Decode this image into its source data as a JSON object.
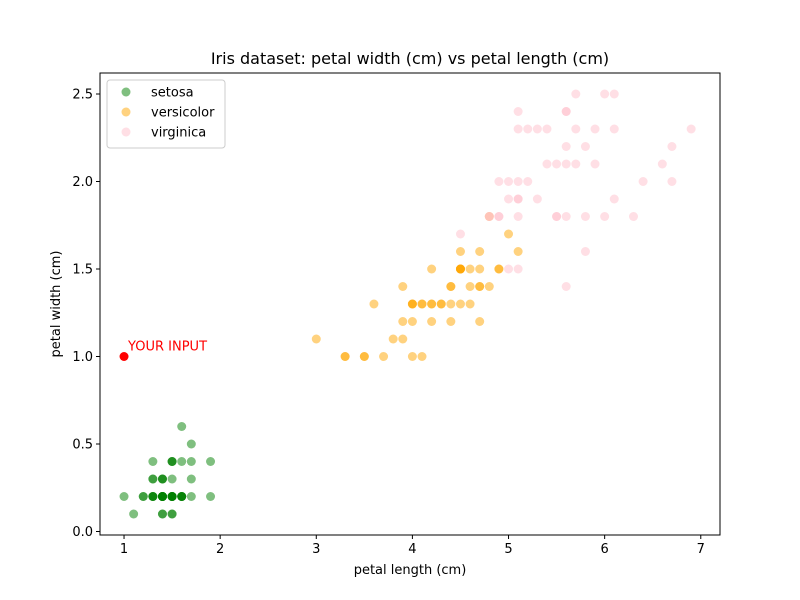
{
  "chart_data": {
    "type": "scatter",
    "title": "Iris dataset: petal width (cm) vs petal length (cm)",
    "xlabel": "petal length (cm)",
    "ylabel": "petal width (cm)",
    "xlim": [
      0.75,
      7.2
    ],
    "ylim": [
      -0.02,
      2.62
    ],
    "xticks": [
      1,
      2,
      3,
      4,
      5,
      6,
      7
    ],
    "xtick_labels": [
      "1",
      "2",
      "3",
      "4",
      "5",
      "6",
      "7"
    ],
    "yticks": [
      0.0,
      0.5,
      1.0,
      1.5,
      2.0,
      2.5
    ],
    "ytick_labels": [
      "0.0",
      "0.5",
      "1.0",
      "1.5",
      "2.0",
      "2.5"
    ],
    "grid": false,
    "legend_position": "top-left",
    "series": [
      {
        "name": "setosa",
        "color": "#008000",
        "opacity": 0.5,
        "points": [
          [
            1.4,
            0.2
          ],
          [
            1.4,
            0.2
          ],
          [
            1.3,
            0.2
          ],
          [
            1.5,
            0.2
          ],
          [
            1.4,
            0.2
          ],
          [
            1.7,
            0.4
          ],
          [
            1.4,
            0.3
          ],
          [
            1.5,
            0.2
          ],
          [
            1.4,
            0.2
          ],
          [
            1.5,
            0.1
          ],
          [
            1.5,
            0.2
          ],
          [
            1.6,
            0.2
          ],
          [
            1.4,
            0.1
          ],
          [
            1.1,
            0.1
          ],
          [
            1.2,
            0.2
          ],
          [
            1.5,
            0.4
          ],
          [
            1.3,
            0.4
          ],
          [
            1.4,
            0.3
          ],
          [
            1.7,
            0.3
          ],
          [
            1.5,
            0.3
          ],
          [
            1.7,
            0.2
          ],
          [
            1.5,
            0.4
          ],
          [
            1.0,
            0.2
          ],
          [
            1.7,
            0.5
          ],
          [
            1.9,
            0.2
          ],
          [
            1.6,
            0.2
          ],
          [
            1.6,
            0.4
          ],
          [
            1.5,
            0.2
          ],
          [
            1.4,
            0.2
          ],
          [
            1.6,
            0.2
          ],
          [
            1.6,
            0.2
          ],
          [
            1.5,
            0.4
          ],
          [
            1.5,
            0.1
          ],
          [
            1.4,
            0.2
          ],
          [
            1.5,
            0.2
          ],
          [
            1.2,
            0.2
          ],
          [
            1.3,
            0.2
          ],
          [
            1.4,
            0.1
          ],
          [
            1.3,
            0.2
          ],
          [
            1.5,
            0.2
          ],
          [
            1.3,
            0.3
          ],
          [
            1.3,
            0.3
          ],
          [
            1.3,
            0.2
          ],
          [
            1.6,
            0.6
          ],
          [
            1.9,
            0.4
          ],
          [
            1.4,
            0.3
          ],
          [
            1.6,
            0.2
          ],
          [
            1.4,
            0.2
          ],
          [
            1.5,
            0.2
          ],
          [
            1.4,
            0.2
          ]
        ]
      },
      {
        "name": "versicolor",
        "color": "#ffa500",
        "opacity": 0.5,
        "points": [
          [
            4.7,
            1.4
          ],
          [
            4.5,
            1.5
          ],
          [
            4.9,
            1.5
          ],
          [
            4.0,
            1.3
          ],
          [
            4.6,
            1.5
          ],
          [
            4.5,
            1.3
          ],
          [
            4.7,
            1.6
          ],
          [
            3.3,
            1.0
          ],
          [
            4.6,
            1.3
          ],
          [
            3.9,
            1.4
          ],
          [
            3.5,
            1.0
          ],
          [
            4.2,
            1.5
          ],
          [
            4.0,
            1.0
          ],
          [
            4.7,
            1.4
          ],
          [
            3.6,
            1.3
          ],
          [
            4.4,
            1.4
          ],
          [
            4.5,
            1.5
          ],
          [
            4.1,
            1.0
          ],
          [
            4.5,
            1.5
          ],
          [
            3.9,
            1.1
          ],
          [
            4.8,
            1.8
          ],
          [
            4.0,
            1.3
          ],
          [
            4.9,
            1.5
          ],
          [
            4.7,
            1.2
          ],
          [
            4.3,
            1.3
          ],
          [
            4.4,
            1.4
          ],
          [
            4.8,
            1.4
          ],
          [
            5.0,
            1.7
          ],
          [
            4.5,
            1.5
          ],
          [
            3.5,
            1.0
          ],
          [
            3.8,
            1.1
          ],
          [
            3.7,
            1.0
          ],
          [
            3.9,
            1.2
          ],
          [
            5.1,
            1.6
          ],
          [
            4.5,
            1.5
          ],
          [
            4.5,
            1.6
          ],
          [
            4.7,
            1.5
          ],
          [
            4.4,
            1.3
          ],
          [
            4.1,
            1.3
          ],
          [
            4.0,
            1.3
          ],
          [
            4.4,
            1.2
          ],
          [
            4.6,
            1.4
          ],
          [
            4.0,
            1.2
          ],
          [
            3.3,
            1.0
          ],
          [
            4.2,
            1.3
          ],
          [
            4.2,
            1.2
          ],
          [
            4.2,
            1.3
          ],
          [
            4.3,
            1.3
          ],
          [
            3.0,
            1.1
          ],
          [
            4.1,
            1.3
          ]
        ]
      },
      {
        "name": "virginica",
        "color": "#ffc0cb",
        "opacity": 0.5,
        "points": [
          [
            6.0,
            2.5
          ],
          [
            5.1,
            1.9
          ],
          [
            5.9,
            2.1
          ],
          [
            5.6,
            1.8
          ],
          [
            5.8,
            2.2
          ],
          [
            6.6,
            2.1
          ],
          [
            4.5,
            1.7
          ],
          [
            6.3,
            1.8
          ],
          [
            5.8,
            1.8
          ],
          [
            6.1,
            2.5
          ],
          [
            5.1,
            2.0
          ],
          [
            5.3,
            1.9
          ],
          [
            5.5,
            2.1
          ],
          [
            5.0,
            2.0
          ],
          [
            5.1,
            2.4
          ],
          [
            5.3,
            2.3
          ],
          [
            5.5,
            1.8
          ],
          [
            6.7,
            2.2
          ],
          [
            6.9,
            2.3
          ],
          [
            5.0,
            1.5
          ],
          [
            5.7,
            2.3
          ],
          [
            4.9,
            2.0
          ],
          [
            6.7,
            2.0
          ],
          [
            4.9,
            1.8
          ],
          [
            5.7,
            2.1
          ],
          [
            6.0,
            1.8
          ],
          [
            4.8,
            1.8
          ],
          [
            4.9,
            1.8
          ],
          [
            5.6,
            2.1
          ],
          [
            5.8,
            1.6
          ],
          [
            6.1,
            1.9
          ],
          [
            6.4,
            2.0
          ],
          [
            5.6,
            2.2
          ],
          [
            5.1,
            1.5
          ],
          [
            5.6,
            1.4
          ],
          [
            6.1,
            2.3
          ],
          [
            5.6,
            2.4
          ],
          [
            5.5,
            1.8
          ],
          [
            4.8,
            1.8
          ],
          [
            5.4,
            2.1
          ],
          [
            5.6,
            2.4
          ],
          [
            5.1,
            2.3
          ],
          [
            5.1,
            1.9
          ],
          [
            5.9,
            2.3
          ],
          [
            5.7,
            2.5
          ],
          [
            5.2,
            2.3
          ],
          [
            5.0,
            1.9
          ],
          [
            5.2,
            2.0
          ],
          [
            5.4,
            2.3
          ],
          [
            5.1,
            1.8
          ]
        ]
      },
      {
        "name": "",
        "color": "#ff0000",
        "opacity": 1.0,
        "points": [
          [
            1.0,
            1.0
          ]
        ]
      }
    ],
    "annotations": [
      {
        "text": "YOUR INPUT",
        "x": 1.0,
        "y": 1.0,
        "color": "#ff0000"
      }
    ]
  }
}
